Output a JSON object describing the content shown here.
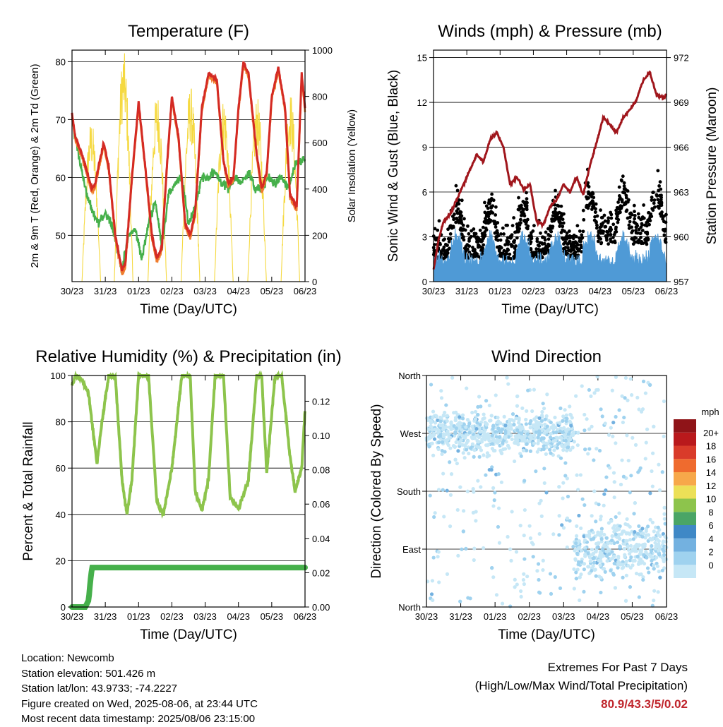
{
  "x_ticks": [
    "30/23",
    "31/23",
    "01/23",
    "02/23",
    "03/23",
    "04/23",
    "05/23",
    "06/23"
  ],
  "info": {
    "location": "Location: Newcomb",
    "elevation": "Station elevation: 501.426 m",
    "latlon": "Station lat/lon: 43.9733; -74.2227",
    "created": "Figure created on Wed, 2025-08-06, at 23:44 UTC",
    "recent": "Most recent data timestamp: 2025/08/06 23:15:00"
  },
  "extremes": {
    "line1": "Extremes For Past 7 Days",
    "line2": "(High/Low/Max Wind/Total Precipitation)",
    "value": "80.9/43.3/5/0.02"
  },
  "colors": {
    "temp": "#d42a24",
    "temp9m": "#f07d2e",
    "dewpoint": "#46b04b",
    "solar": "#f5d940",
    "pressure": "#a0161c",
    "wind": "#4f9ad6",
    "gust": "#000000",
    "rh": "#8dc44c",
    "rain": "#46b04b"
  },
  "chart_data": [
    {
      "type": "line",
      "title": "Temperature (F)",
      "xlabel": "Time (Day/UTC)",
      "ylabel": "2m & 9m T (Red, Orange) & 2m Td (Green)",
      "ylabel_right": "Solar Insolation (Yellow)",
      "ylim": [
        42,
        82
      ],
      "yticks": [
        50,
        60,
        70,
        80
      ],
      "ylim_right": [
        0,
        1000
      ],
      "yticks_right": [
        0,
        200,
        400,
        600,
        800,
        1000
      ],
      "x_days": [
        0,
        7
      ],
      "series": [
        {
          "name": "2m T",
          "x": [
            0,
            0.1,
            0.3,
            0.5,
            0.6,
            0.7,
            0.8,
            0.95,
            1.1,
            1.3,
            1.5,
            1.6,
            1.8,
            2.0,
            2.2,
            2.4,
            2.55,
            2.7,
            2.85,
            3.0,
            3.2,
            3.4,
            3.55,
            3.7,
            3.9,
            4.1,
            4.35,
            4.55,
            4.7,
            4.85,
            5.0,
            5.15,
            5.3,
            5.55,
            5.7,
            5.85,
            6.0,
            6.2,
            6.4,
            6.55,
            6.75,
            6.9,
            7.0
          ],
          "y": [
            71,
            67,
            64,
            60,
            58,
            59,
            62,
            66,
            62,
            50,
            44,
            45,
            60,
            73,
            62,
            50,
            46,
            48,
            62,
            74,
            67,
            52,
            50,
            54,
            72,
            78,
            77,
            63,
            59,
            60,
            72,
            80,
            78,
            64,
            58,
            61,
            74,
            79,
            72,
            57,
            55,
            78,
            72
          ]
        },
        {
          "name": "2m Td",
          "x": [
            0,
            0.2,
            0.4,
            0.6,
            0.8,
            1.0,
            1.2,
            1.5,
            1.7,
            1.9,
            2.1,
            2.3,
            2.5,
            2.7,
            2.9,
            3.1,
            3.3,
            3.5,
            3.7,
            3.9,
            4.1,
            4.3,
            4.5,
            4.7,
            4.9,
            5.1,
            5.3,
            5.5,
            5.7,
            5.9,
            6.1,
            6.3,
            6.5,
            6.7,
            6.9,
            7.0
          ],
          "y": [
            70,
            64,
            58,
            54,
            52,
            54,
            52,
            44,
            50,
            51,
            46,
            52,
            56,
            48,
            57,
            59,
            60,
            52,
            55,
            60,
            60,
            61,
            59,
            58,
            60,
            59,
            61,
            58,
            58,
            60,
            59,
            60,
            58,
            62,
            63,
            63
          ]
        },
        {
          "name": "Solar",
          "peaks": [
            {
              "x": 0.58,
              "y": 700
            },
            {
              "x": 1.55,
              "y": 1000
            },
            {
              "x": 2.56,
              "y": 820
            },
            {
              "x": 3.56,
              "y": 850
            },
            {
              "x": 4.56,
              "y": 800
            },
            {
              "x": 5.56,
              "y": 800
            },
            {
              "x": 6.56,
              "y": 820
            }
          ]
        }
      ]
    },
    {
      "type": "line",
      "title": "Winds (mph) & Pressure (mb)",
      "xlabel": "Time (Day/UTC)",
      "ylabel": "Sonic Wind & Gust (Blue, Black)",
      "ylabel_right": "Station Pressure (Maroon)",
      "ylim": [
        0,
        15.5
      ],
      "yticks": [
        0,
        3,
        6,
        9,
        12,
        15
      ],
      "ylim_right": [
        957,
        972.5
      ],
      "yticks_right": [
        957,
        960,
        963,
        966,
        969,
        972
      ],
      "series": [
        {
          "name": "Pressure",
          "x": [
            0,
            0.15,
            0.3,
            0.5,
            0.7,
            0.9,
            1.1,
            1.3,
            1.5,
            1.7,
            1.9,
            2.1,
            2.3,
            2.5,
            2.7,
            2.9,
            3.1,
            3.3,
            3.5,
            3.7,
            3.9,
            4.1,
            4.3,
            4.5,
            4.7,
            4.9,
            5.1,
            5.3,
            5.5,
            5.7,
            5.9,
            6.1,
            6.3,
            6.5,
            6.7,
            6.9,
            7.0
          ],
          "y": [
            957.8,
            959.8,
            961,
            961.5,
            962.5,
            963.5,
            964.5,
            965.5,
            965,
            966.5,
            967,
            966,
            963.5,
            964,
            963.2,
            963.5,
            961,
            960.8,
            962,
            962.5,
            963.5,
            963,
            964,
            962.8,
            964.8,
            966.3,
            968,
            967.5,
            967,
            968,
            968.5,
            969.2,
            970.5,
            971,
            969.5,
            969.3,
            969.5
          ]
        }
      ]
    },
    {
      "type": "line",
      "title": "Relative Humidity (%) & Precipitation (in)",
      "xlabel": "Time (Day/UTC)",
      "ylabel": "Percent & Total Rainfall",
      "ylim": [
        0,
        100
      ],
      "yticks": [
        0,
        20,
        40,
        60,
        80,
        100
      ],
      "ylim_right": [
        0,
        0.135
      ],
      "yticks_right": [
        "0.00",
        "0.02",
        "0.04",
        "0.06",
        "0.08",
        "0.10",
        "0.12"
      ],
      "series": [
        {
          "name": "RH",
          "x": [
            0,
            0.1,
            0.3,
            0.5,
            0.6,
            0.75,
            0.9,
            1.1,
            1.3,
            1.5,
            1.65,
            1.8,
            2.0,
            2.3,
            2.55,
            2.75,
            3.0,
            3.3,
            3.55,
            3.7,
            3.9,
            4.1,
            4.3,
            4.55,
            4.75,
            5.0,
            5.3,
            5.55,
            5.7,
            5.85,
            6.1,
            6.3,
            6.55,
            6.7,
            6.9,
            7.0
          ],
          "y": [
            95,
            100,
            98,
            92,
            80,
            62,
            80,
            100,
            100,
            55,
            40,
            55,
            100,
            100,
            45,
            40,
            60,
            100,
            100,
            50,
            42,
            55,
            100,
            100,
            48,
            42,
            55,
            100,
            100,
            58,
            100,
            100,
            65,
            50,
            60,
            85
          ]
        },
        {
          "name": "Rainfall",
          "x": [
            0,
            0.4,
            0.5,
            0.55,
            0.6,
            7.0
          ],
          "y": [
            0,
            0,
            0.004,
            0.015,
            0.023,
            0.023
          ]
        }
      ]
    },
    {
      "type": "scatter",
      "title": "Wind Direction",
      "xlabel": "Time (Day/UTC)",
      "ylabel": "Direction (Colored By Speed)",
      "yticks": [
        "North",
        "East",
        "South",
        "West",
        "North"
      ],
      "ylim": [
        0,
        360
      ],
      "colorbar": {
        "title": "mph",
        "labels": [
          "0",
          "2",
          "4",
          "6",
          "8",
          "10",
          "12",
          "14",
          "16",
          "18",
          "20+"
        ],
        "colors": [
          "#c6e7f6",
          "#9fd2ef",
          "#73b1e0",
          "#3f88c6",
          "#4aa566",
          "#8dc44c",
          "#ece057",
          "#f7a84a",
          "#ef6b2e",
          "#d93b2a",
          "#b9191c",
          "#8f1418"
        ]
      }
    }
  ]
}
